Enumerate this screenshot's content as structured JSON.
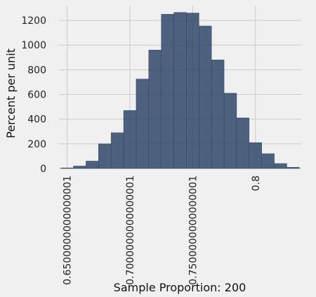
{
  "chart_data": {
    "type": "bar",
    "xlabel": "Sample Proportion: 200",
    "ylabel": "Percent per unit",
    "xlim": [
      0.6435,
      0.8365
    ],
    "ylim": [
      0,
      1320
    ],
    "xticks": [
      0.65,
      0.7,
      0.75,
      0.8
    ],
    "xtick_labels": [
      "0.6500000000000001",
      "0.7000000000000001",
      "0.7500000000000001",
      "0.8"
    ],
    "yticks": [
      0,
      200,
      400,
      600,
      800,
      1000,
      1200
    ],
    "ytick_labels": [
      "0",
      "200",
      "400",
      "600",
      "800",
      "1000",
      "1200"
    ],
    "grid": true,
    "bin_width": 0.01,
    "bins": [
      {
        "x0": 0.645,
        "x1": 0.655,
        "value": 5
      },
      {
        "x0": 0.655,
        "x1": 0.665,
        "value": 20
      },
      {
        "x0": 0.665,
        "x1": 0.675,
        "value": 60
      },
      {
        "x0": 0.675,
        "x1": 0.685,
        "value": 200
      },
      {
        "x0": 0.685,
        "x1": 0.695,
        "value": 290
      },
      {
        "x0": 0.695,
        "x1": 0.705,
        "value": 470
      },
      {
        "x0": 0.705,
        "x1": 0.715,
        "value": 725
      },
      {
        "x0": 0.715,
        "x1": 0.725,
        "value": 960
      },
      {
        "x0": 0.725,
        "x1": 0.735,
        "value": 1250
      },
      {
        "x0": 0.735,
        "x1": 0.745,
        "value": 1265
      },
      {
        "x0": 0.745,
        "x1": 0.755,
        "value": 1260
      },
      {
        "x0": 0.755,
        "x1": 0.765,
        "value": 1155
      },
      {
        "x0": 0.765,
        "x1": 0.775,
        "value": 880
      },
      {
        "x0": 0.775,
        "x1": 0.785,
        "value": 610
      },
      {
        "x0": 0.785,
        "x1": 0.795,
        "value": 410
      },
      {
        "x0": 0.795,
        "x1": 0.805,
        "value": 210
      },
      {
        "x0": 0.805,
        "x1": 0.815,
        "value": 120
      },
      {
        "x0": 0.815,
        "x1": 0.825,
        "value": 40
      },
      {
        "x0": 0.825,
        "x1": 0.835,
        "value": 10
      }
    ],
    "bar_color": "#30466a",
    "background_color": "#f0f0f0"
  }
}
